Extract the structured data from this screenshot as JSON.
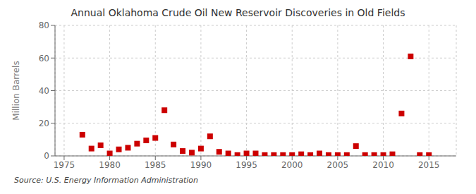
{
  "chart_data": {
    "type": "scatter",
    "title": "Annual Oklahoma Crude Oil New Reservoir Discoveries in Old Fields",
    "ylabel": "Million Barrels",
    "annotations": [
      "Source: U.S. Energy Information Administration"
    ],
    "x": [
      1977,
      1978,
      1979,
      1980,
      1981,
      1982,
      1983,
      1984,
      1985,
      1986,
      1987,
      1988,
      1989,
      1990,
      1991,
      1992,
      1993,
      1994,
      1995,
      1996,
      1997,
      1998,
      1999,
      2000,
      2001,
      2002,
      2003,
      2004,
      2005,
      2006,
      2007,
      2008,
      2009,
      2010,
      2011,
      2012,
      2013,
      2014,
      2015
    ],
    "values": [
      13.0,
      4.5,
      6.5,
      1.5,
      4.0,
      5.0,
      7.5,
      9.5,
      11.0,
      28.0,
      7.0,
      3.0,
      2.0,
      4.5,
      12.0,
      2.5,
      1.5,
      0.5,
      1.5,
      1.5,
      0.5,
      0.5,
      0.5,
      0.5,
      1.0,
      0.5,
      1.5,
      0.5,
      0.5,
      0.5,
      6.0,
      0.5,
      0.5,
      0.5,
      1.0,
      26.0,
      61.0,
      0.5,
      0.5
    ],
    "color": "#cc0000",
    "marker": "square",
    "xlim": [
      1974,
      2018
    ],
    "xticks": [
      1975,
      1980,
      1985,
      1990,
      1995,
      2000,
      2005,
      2010,
      2015
    ],
    "ylim": [
      0,
      80
    ],
    "yticks": [
      0,
      20,
      40,
      60,
      80
    ],
    "grid": true
  }
}
